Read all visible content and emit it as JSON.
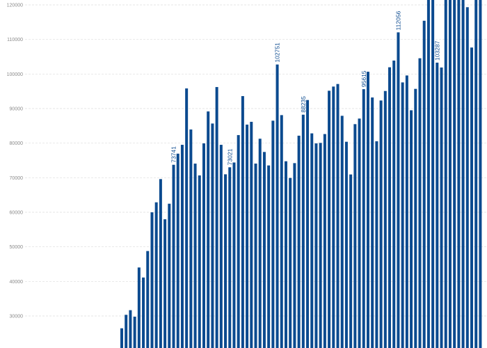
{
  "chart_data": {
    "type": "bar",
    "title": "",
    "xlabel": "",
    "ylabel": "",
    "ylim": [
      21000,
      121000
    ],
    "y_ticks": [
      "30000",
      "40000",
      "50000",
      "60000",
      "70000",
      "80000",
      "90000",
      "100000",
      "110000",
      "120000"
    ],
    "grid": true,
    "bar_color": "#0b4a8f",
    "label_color": "#0b4a8f",
    "values": [
      26440,
      30340,
      31680,
      29800,
      44030,
      41130,
      48790,
      59990,
      62880,
      69600,
      57980,
      62480,
      73741,
      76960,
      79520,
      95830,
      83950,
      74080,
      70660,
      79930,
      89170,
      85680,
      96230,
      79520,
      70990,
      73021,
      74400,
      82330,
      93610,
      85360,
      86170,
      74090,
      81280,
      77450,
      73550,
      86500,
      102751,
      88110,
      74760,
      69930,
      74220,
      82160,
      88235,
      92470,
      82830,
      79930,
      80070,
      82630,
      95160,
      96370,
      97110,
      87910,
      80400,
      70940,
      85500,
      87110,
      95615,
      100660,
      93210,
      80540,
      92340,
      95090,
      101950,
      103890,
      112056,
      97570,
      99580,
      89510,
      95700,
      104560,
      115410,
      123000,
      124000,
      103287,
      101880,
      125000,
      126000,
      123500,
      124500,
      122000,
      119330,
      107660,
      122500,
      123000
    ],
    "data_labels": [
      {
        "index": 12,
        "text": "73741"
      },
      {
        "index": 25,
        "text": "73021"
      },
      {
        "index": 36,
        "text": "102751"
      },
      {
        "index": 42,
        "text": "88235"
      },
      {
        "index": 56,
        "text": "95615"
      },
      {
        "index": 64,
        "text": "112056"
      },
      {
        "index": 73,
        "text": "103287"
      }
    ]
  }
}
